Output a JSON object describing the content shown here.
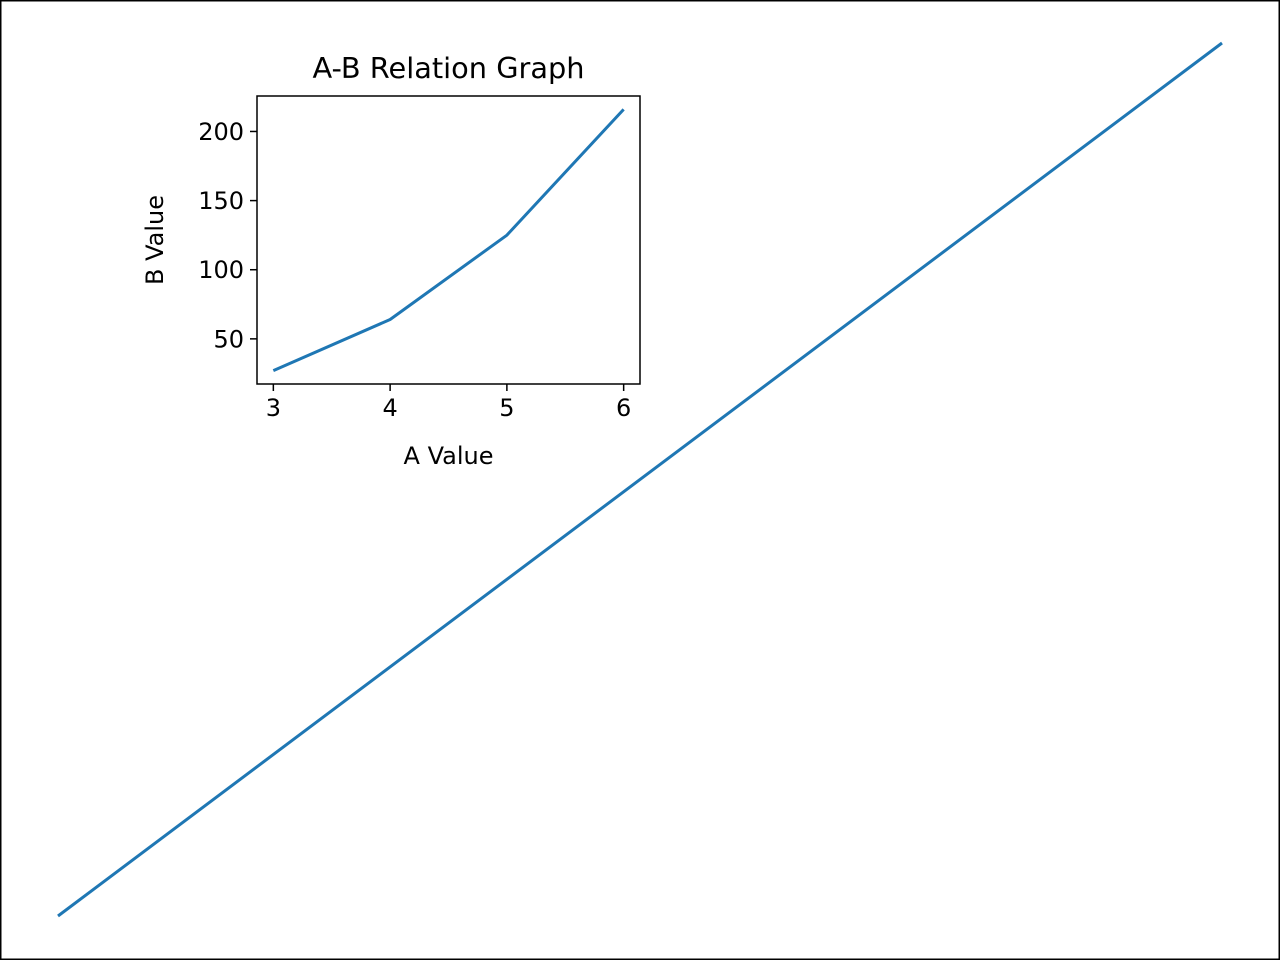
{
  "chart_data": [
    {
      "type": "line",
      "title": "",
      "xlabel": "",
      "ylabel": "",
      "axes_visible": false,
      "series": [
        {
          "values": [
            0,
            1
          ],
          "x": [
            0,
            1
          ],
          "color": "#1f77b4"
        }
      ]
    },
    {
      "type": "line",
      "title": "A-B Relation Graph",
      "xlabel": "A Value",
      "ylabel": "B Value",
      "x": [
        3,
        4,
        5,
        6
      ],
      "xticks": [
        "3",
        "4",
        "5",
        "6"
      ],
      "yticks": [
        "50",
        "100",
        "150",
        "200"
      ],
      "xlim": [
        2.86,
        6.14
      ],
      "ylim": [
        17.35,
        225.65
      ],
      "grid": false,
      "series": [
        {
          "values": [
            27,
            64,
            125,
            216
          ],
          "color": "#1f77b4"
        }
      ]
    }
  ]
}
